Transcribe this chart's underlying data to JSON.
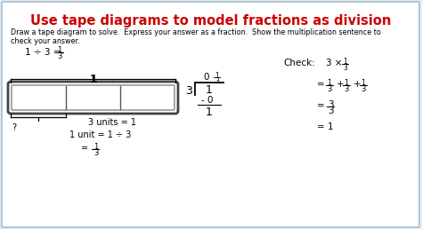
{
  "title": "Use tape diagrams to model fractions as division",
  "title_color": "#cc0000",
  "bg_color": "#ddeef5",
  "border_color": "#aabbcc",
  "body_text_1": "Draw a tape diagram to solve.  Express your answer as a fraction.  Show the multiplication sentence to",
  "body_text_2": "check your answer."
}
